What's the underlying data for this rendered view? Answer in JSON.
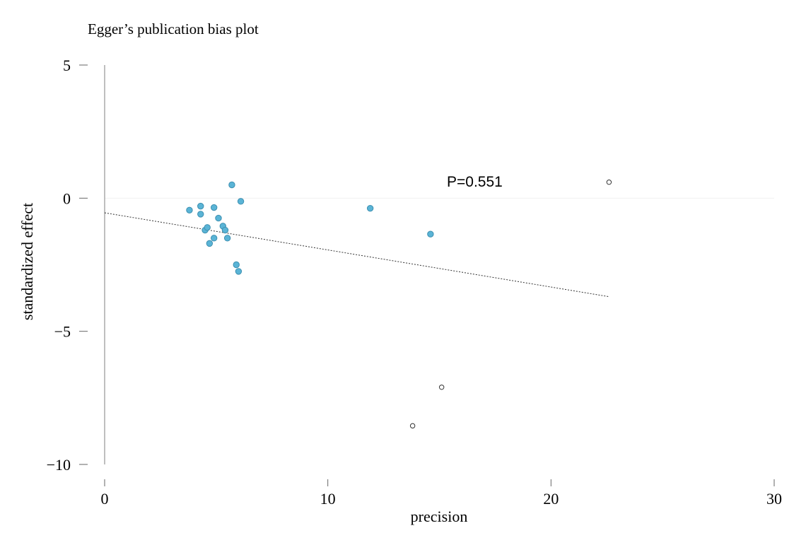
{
  "chart_data": {
    "type": "scatter",
    "title": "Egger’s publication bias plot",
    "xlabel": "precision",
    "ylabel": "standardized effect",
    "xlim": [
      0,
      30
    ],
    "ylim": [
      -10,
      5
    ],
    "xticks": [
      0,
      10,
      20,
      30
    ],
    "yticks": [
      5,
      0,
      -5,
      -10
    ],
    "xtick_labels": [
      "0",
      "10",
      "20",
      "30"
    ],
    "ytick_labels": [
      "5",
      "0",
      "−5",
      "−10"
    ],
    "annotation": "P=0.551",
    "grid": false,
    "colors": {
      "filled_point": "#5ab4d6",
      "filled_point_edge": "#3d8fb0",
      "open_point_edge": "#333333",
      "axis": "#aaaaaa",
      "zero_line": "#f0f0f0",
      "regression_line": "#333333"
    },
    "series": [
      {
        "marker": "filled",
        "points": [
          {
            "x": 3.8,
            "y": -0.45
          },
          {
            "x": 4.3,
            "y": -0.3
          },
          {
            "x": 4.3,
            "y": -0.6
          },
          {
            "x": 4.5,
            "y": -1.2
          },
          {
            "x": 4.6,
            "y": -1.1
          },
          {
            "x": 4.7,
            "y": -1.7
          },
          {
            "x": 4.9,
            "y": -0.35
          },
          {
            "x": 4.9,
            "y": -1.5
          },
          {
            "x": 5.1,
            "y": -0.75
          },
          {
            "x": 5.3,
            "y": -1.05
          },
          {
            "x": 5.4,
            "y": -1.2
          },
          {
            "x": 5.5,
            "y": -1.5
          },
          {
            "x": 5.7,
            "y": 0.5
          },
          {
            "x": 5.9,
            "y": -2.5
          },
          {
            "x": 6.0,
            "y": -2.75
          },
          {
            "x": 6.1,
            "y": -0.12
          },
          {
            "x": 11.9,
            "y": -0.38
          },
          {
            "x": 14.6,
            "y": -1.35
          }
        ]
      },
      {
        "marker": "open",
        "points": [
          {
            "x": 22.6,
            "y": 0.6
          },
          {
            "x": 15.1,
            "y": -7.1
          },
          {
            "x": 13.8,
            "y": -8.55
          }
        ]
      }
    ],
    "regression_line": {
      "x": [
        0,
        22.6
      ],
      "y": [
        -0.55,
        -3.7
      ]
    }
  }
}
